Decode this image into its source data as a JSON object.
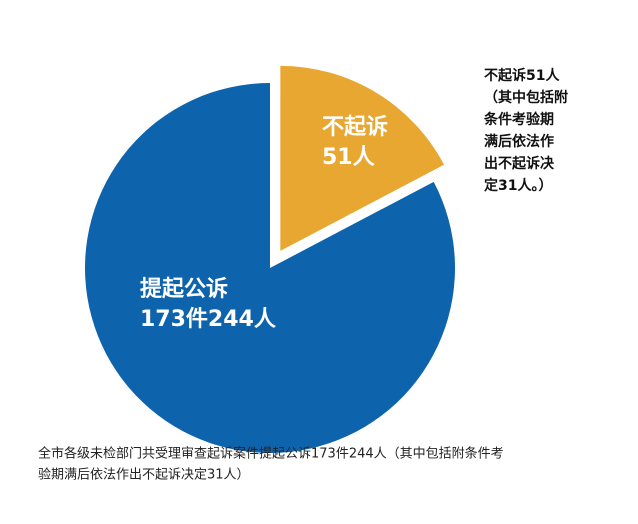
{
  "chart_data": {
    "type": "pie",
    "categories": [
      "不起诉",
      "提起公诉"
    ],
    "values": [
      51,
      244
    ],
    "value_labels": [
      "51人",
      "173件244人"
    ],
    "colors": [
      "#e8a730",
      "#0e63ad"
    ],
    "annotation": [
      "不起诉51人",
      "（其中包括附",
      "条件考验期",
      "满后依法作",
      "出不起诉决",
      "定31人。）"
    ],
    "caption": [
      "全市各级未检部门共受理审查起诉案件提起公诉173件244人（其中包括附条件考",
      "验期满后依法作出不起诉决定31人）"
    ]
  }
}
